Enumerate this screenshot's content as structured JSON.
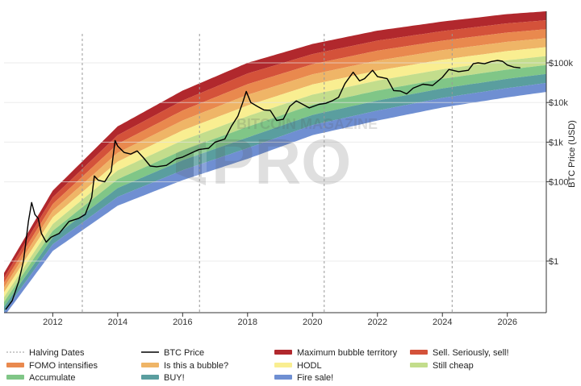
{
  "watermark": {
    "line1": "BITCOIN MAGAZINE",
    "line2": "PRO"
  },
  "chart_data": {
    "type": "line",
    "title": "",
    "xlabel": "",
    "ylabel": "BTC Price (USD)",
    "y_scale": "log",
    "y_axis_position": "right",
    "xlim": [
      2010.5,
      2027.2
    ],
    "ylim": [
      0.05,
      2000000
    ],
    "x_ticks": [
      {
        "value": 2012,
        "label": "2012"
      },
      {
        "value": 2014,
        "label": "2014"
      },
      {
        "value": 2016,
        "label": "2016"
      },
      {
        "value": 2018,
        "label": "2018"
      },
      {
        "value": 2020,
        "label": "2020"
      },
      {
        "value": 2022,
        "label": "2022"
      },
      {
        "value": 2024,
        "label": "2024"
      },
      {
        "value": 2026,
        "label": "2026"
      }
    ],
    "y_ticks": [
      {
        "value": 1,
        "label": "$1"
      },
      {
        "value": 100,
        "label": "$100"
      },
      {
        "value": 1000,
        "label": "$1k"
      },
      {
        "value": 10000,
        "label": "$10k"
      },
      {
        "value": 100000,
        "label": "$100k"
      }
    ],
    "grid": {
      "horizontal": true,
      "vertical": false
    },
    "halving_dates": [
      2012.91,
      2016.52,
      2020.36,
      2024.3
    ],
    "bands": [
      {
        "name": "Maximum bubble territory",
        "color": "#b1282d"
      },
      {
        "name": "Sell. Seriously, sell!",
        "color": "#d4523a"
      },
      {
        "name": "FOMO intensifies",
        "color": "#e9894e"
      },
      {
        "name": "Is this a bubble?",
        "color": "#efb567"
      },
      {
        "name": "HODL",
        "color": "#f9ee91"
      },
      {
        "name": "Still cheap",
        "color": "#c3dd8c"
      },
      {
        "name": "Accumulate",
        "color": "#80c687"
      },
      {
        "name": "BUY!",
        "color": "#5a9e9f"
      },
      {
        "name": "Fire sale!",
        "color": "#6f8fd2"
      }
    ],
    "band_bottom_line": {
      "x": [
        2010.5,
        2012,
        2014,
        2016,
        2018,
        2020,
        2022,
        2024,
        2026,
        2027.2
      ],
      "y": [
        0.04,
        1.8,
        25,
        110,
        380,
        1500,
        3500,
        7500,
        13500,
        18500
      ]
    },
    "band_top_line": {
      "x": [
        2010.5,
        2012,
        2014,
        2016,
        2018,
        2020,
        2022,
        2024,
        2026,
        2027.2
      ],
      "y": [
        0.5,
        60,
        2500,
        20000,
        100000,
        300000,
        650000,
        1100000,
        1700000,
        2000000
      ]
    },
    "series": [
      {
        "name": "BTC Price",
        "color": "#000000",
        "x": [
          2010.55,
          2010.75,
          2010.95,
          2011.1,
          2011.25,
          2011.35,
          2011.45,
          2011.55,
          2011.65,
          2011.8,
          2011.95,
          2012.2,
          2012.5,
          2012.8,
          2013.0,
          2013.2,
          2013.28,
          2013.4,
          2013.6,
          2013.8,
          2013.92,
          2014.0,
          2014.2,
          2014.4,
          2014.6,
          2014.8,
          2015.0,
          2015.2,
          2015.5,
          2015.8,
          2016.0,
          2016.3,
          2016.5,
          2016.8,
          2017.0,
          2017.3,
          2017.5,
          2017.7,
          2017.85,
          2017.96,
          2018.1,
          2018.3,
          2018.5,
          2018.7,
          2018.9,
          2019.1,
          2019.3,
          2019.5,
          2019.7,
          2019.9,
          2020.2,
          2020.4,
          2020.6,
          2020.8,
          2021.0,
          2021.25,
          2021.45,
          2021.6,
          2021.85,
          2022.0,
          2022.3,
          2022.5,
          2022.7,
          2022.9,
          2023.1,
          2023.4,
          2023.7,
          2024.0,
          2024.2,
          2024.5,
          2024.8,
          2024.95,
          2025.1,
          2025.3,
          2025.5,
          2025.7,
          2025.85,
          2026.0,
          2026.2,
          2026.4
        ],
        "y": [
          0.06,
          0.1,
          0.3,
          1,
          10,
          30,
          15,
          12,
          5,
          3,
          4,
          5,
          10,
          12,
          15,
          40,
          140,
          110,
          100,
          180,
          1100,
          800,
          550,
          500,
          600,
          400,
          250,
          240,
          260,
          380,
          420,
          550,
          650,
          700,
          1000,
          1200,
          2500,
          4500,
          10000,
          19000,
          10000,
          8000,
          6500,
          6300,
          3500,
          3800,
          8000,
          11000,
          9000,
          7300,
          9000,
          9500,
          11000,
          13500,
          30000,
          58000,
          35000,
          40000,
          65000,
          45000,
          40000,
          20000,
          19500,
          16500,
          23000,
          29000,
          27000,
          43000,
          68000,
          60000,
          65000,
          95000,
          100000,
          95000,
          108000,
          115000,
          110000,
          88000,
          78000,
          75000
        ]
      }
    ],
    "legend": {
      "placement": "bottom",
      "entries": [
        {
          "label": "Halving Dates",
          "kind": "dash",
          "color": "#9a9a9a"
        },
        {
          "label": "BTC Price",
          "kind": "line",
          "color": "#000000"
        },
        {
          "label": "Maximum bubble territory",
          "kind": "band",
          "color": "#b1282d"
        },
        {
          "label": "Sell. Seriously, sell!",
          "kind": "band",
          "color": "#d4523a"
        },
        {
          "label": "FOMO intensifies",
          "kind": "band",
          "color": "#e9894e"
        },
        {
          "label": "Is this a bubble?",
          "kind": "band",
          "color": "#efb567"
        },
        {
          "label": "HODL",
          "kind": "band",
          "color": "#f9ee91"
        },
        {
          "label": "Still cheap",
          "kind": "band",
          "color": "#c3dd8c"
        },
        {
          "label": "Accumulate",
          "kind": "band",
          "color": "#80c687"
        },
        {
          "label": "BUY!",
          "kind": "band",
          "color": "#5a9e9f"
        },
        {
          "label": "Fire sale!",
          "kind": "band",
          "color": "#6f8fd2"
        }
      ]
    }
  }
}
